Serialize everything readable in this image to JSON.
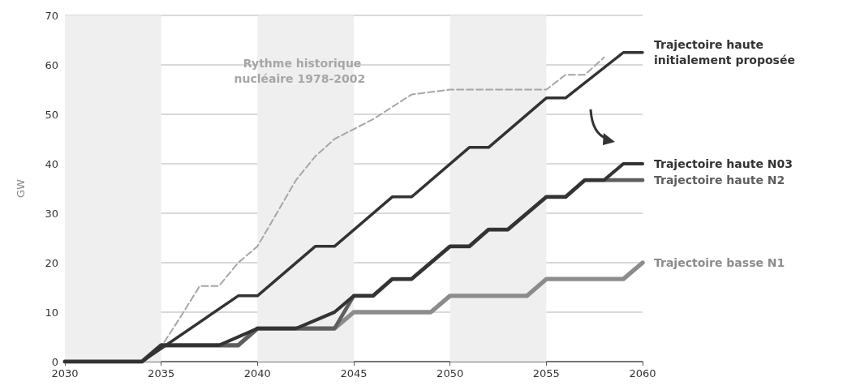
{
  "chart_data": {
    "type": "line",
    "ylabel": "GW",
    "xlim": [
      2030,
      2060
    ],
    "xticks": [
      2030,
      2035,
      2040,
      2045,
      2050,
      2055,
      2060
    ],
    "ylim": [
      0,
      70
    ],
    "yticks": [
      0,
      10,
      20,
      30,
      40,
      50,
      60,
      70
    ],
    "grid": "y",
    "legend": false,
    "marker": "none",
    "bands": [
      {
        "axis": "x",
        "from": 2030,
        "to": 2035,
        "color": "#efefef"
      },
      {
        "axis": "x",
        "from": 2040,
        "to": 2045,
        "color": "#efefef"
      },
      {
        "axis": "x",
        "from": 2050,
        "to": 2055,
        "color": "#efefef"
      }
    ],
    "series": [
      {
        "name": "Rythme historique nucléaire 1978-2002",
        "color": "#a6a6a6",
        "line_style": "dashed",
        "x": [
          2030,
          2034,
          2035,
          2036,
          2037,
          2038,
          2039,
          2040,
          2041,
          2042,
          2043,
          2044,
          2045,
          2046,
          2047,
          2048,
          2049,
          2050,
          2055,
          2056,
          2057,
          2058
        ],
        "values": [
          0,
          0,
          3,
          9,
          15.3,
          15.3,
          20,
          23.3,
          30,
          36.7,
          41.5,
          45,
          47,
          49,
          51.5,
          54,
          54.5,
          55,
          55,
          58,
          58,
          61.5
        ]
      },
      {
        "name": "Trajectoire basse N1",
        "color": "#8c8c8c",
        "line_style": "solid",
        "x": [
          2030,
          2034,
          2035,
          2039,
          2040,
          2044,
          2045,
          2049,
          2050,
          2054,
          2055,
          2059,
          2060
        ],
        "values": [
          0,
          0,
          3.3,
          3.3,
          6.7,
          6.7,
          10,
          10,
          13.3,
          13.3,
          16.7,
          16.7,
          20
        ]
      },
      {
        "name": "Trajectoire haute N2",
        "color": "#5e5e5e",
        "line_style": "solid",
        "x": [
          2030,
          2034,
          2035,
          2039,
          2040,
          2044,
          2045,
          2046,
          2047,
          2048,
          2050,
          2051,
          2052,
          2053,
          2055,
          2056,
          2057,
          2060
        ],
        "values": [
          0,
          0,
          3.3,
          3.3,
          6.7,
          6.7,
          13.3,
          13.3,
          16.7,
          16.7,
          23.3,
          23.3,
          26.7,
          26.7,
          33.3,
          33.3,
          36.7,
          36.7
        ]
      },
      {
        "name": "Trajectoire haute N03",
        "color": "#333333",
        "line_style": "solid",
        "x": [
          2030,
          2034,
          2035,
          2038,
          2040,
          2042,
          2044,
          2045,
          2046,
          2047,
          2048,
          2050,
          2051,
          2052,
          2053,
          2055,
          2056,
          2057,
          2058,
          2059,
          2060
        ],
        "values": [
          0,
          0,
          3.3,
          3.3,
          6.7,
          6.7,
          10,
          13.3,
          13.3,
          16.7,
          16.7,
          23.3,
          23.3,
          26.7,
          26.7,
          33.3,
          33.3,
          36.7,
          36.7,
          40,
          40
        ]
      },
      {
        "name": "Trajectoire haute initialement proposée",
        "color": "#333333",
        "line_style": "solid",
        "x": [
          2030,
          2034,
          2039,
          2040,
          2043,
          2044,
          2047,
          2048,
          2051,
          2052,
          2055,
          2056,
          2059,
          2060
        ],
        "values": [
          0,
          0,
          13.3,
          13.3,
          23.3,
          23.3,
          33.3,
          33.3,
          43.3,
          43.3,
          53.3,
          53.3,
          62.5,
          62.5
        ]
      }
    ]
  }
}
